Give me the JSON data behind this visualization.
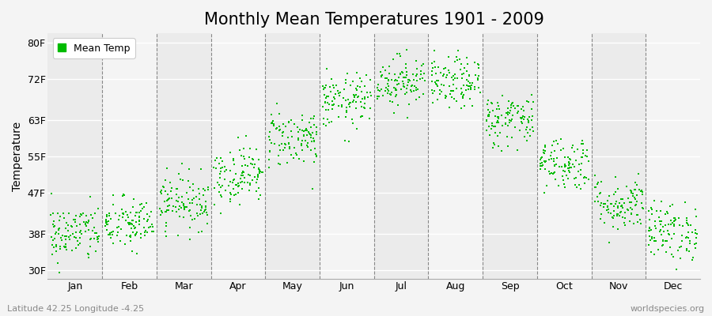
{
  "title": "Monthly Mean Temperatures 1901 - 2009",
  "ylabel": "Temperature",
  "ytick_labels": [
    "30F",
    "38F",
    "47F",
    "55F",
    "63F",
    "72F",
    "80F"
  ],
  "ytick_values": [
    30,
    38,
    47,
    55,
    63,
    72,
    80
  ],
  "ylim": [
    28,
    82
  ],
  "dot_color": "#00bb00",
  "dot_size": 4,
  "background_color": "#f4f4f4",
  "plot_bg_color": "#f4f4f4",
  "legend_label": "Mean Temp",
  "footer_left": "Latitude 42.25 Longitude -4.25",
  "footer_right": "worldspecies.org",
  "month_names": [
    "Jan",
    "Feb",
    "Mar",
    "Apr",
    "May",
    "Jun",
    "Jul",
    "Aug",
    "Sep",
    "Oct",
    "Nov",
    "Dec"
  ],
  "mean_temps_F": [
    38.0,
    40.0,
    45.0,
    51.0,
    59.0,
    67.0,
    71.5,
    71.0,
    63.0,
    53.5,
    44.5,
    38.5
  ],
  "std_temps_F": [
    3.2,
    3.0,
    3.0,
    3.2,
    3.2,
    3.0,
    2.8,
    2.8,
    3.0,
    3.0,
    3.0,
    3.2
  ],
  "n_years": 109,
  "title_fontsize": 15,
  "axis_label_fontsize": 10,
  "tick_fontsize": 9,
  "footer_fontsize": 8
}
